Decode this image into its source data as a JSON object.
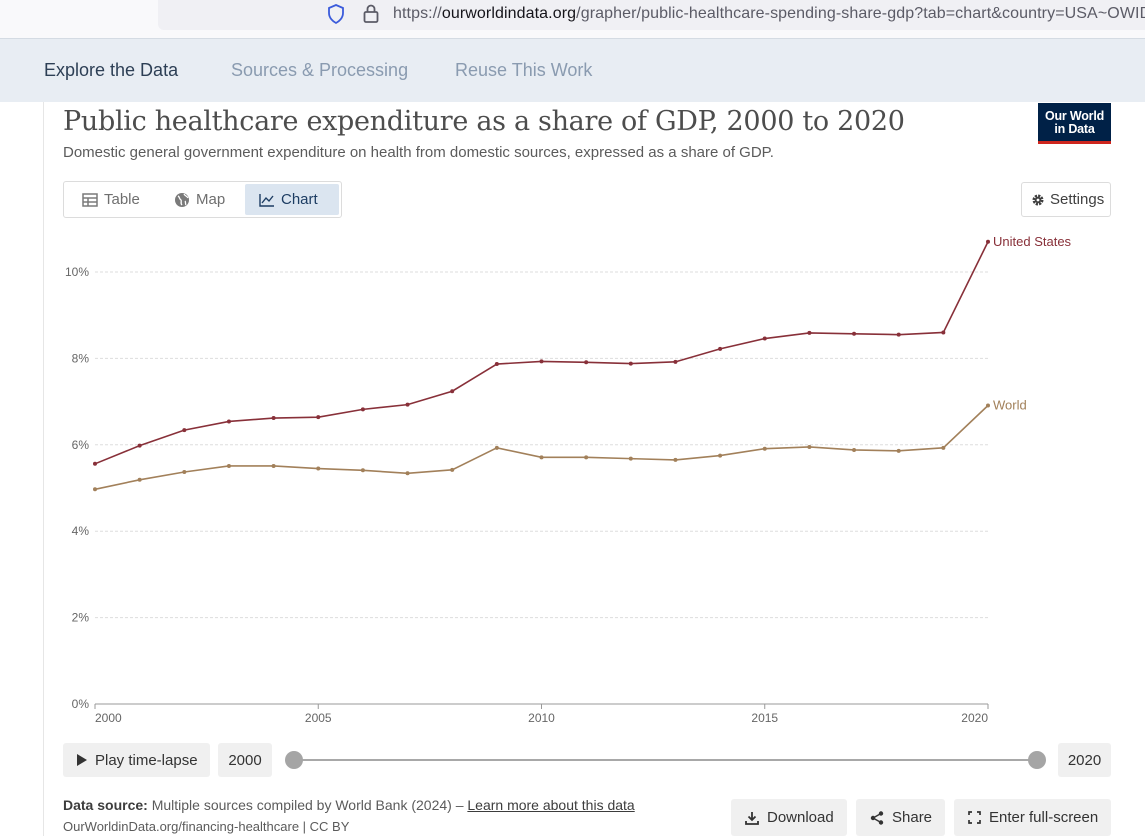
{
  "browser": {
    "url_prefix": "https://",
    "url_host": "ourworldindata.org",
    "url_rest": "/grapher/public-healthcare-spending-share-gdp?tab=chart&country=USA~OWID_WRL"
  },
  "nav_tabs": [
    {
      "label": "Explore the Data",
      "active": true
    },
    {
      "label": "Sources & Processing",
      "active": false
    },
    {
      "label": "Reuse This Work",
      "active": false
    }
  ],
  "header": {
    "title": "Public healthcare expenditure as a share of GDP, 2000 to 2020",
    "subtitle": "Domestic general government expenditure on health from domestic sources, expressed as a share of GDP.",
    "logo_line1": "Our World",
    "logo_line2": "in Data"
  },
  "view_tabs": [
    {
      "label": "Table",
      "icon": "table-icon",
      "active": false
    },
    {
      "label": "Map",
      "icon": "globe-icon",
      "active": false
    },
    {
      "label": "Chart",
      "icon": "line-chart-icon",
      "active": true
    }
  ],
  "settings_label": "Settings",
  "chart_data": {
    "type": "line",
    "x": [
      2000,
      2001,
      2002,
      2003,
      2004,
      2005,
      2006,
      2007,
      2008,
      2009,
      2010,
      2011,
      2012,
      2013,
      2014,
      2015,
      2016,
      2017,
      2018,
      2019,
      2020
    ],
    "series": [
      {
        "name": "United States",
        "color": "#883039",
        "values": [
          5.56,
          5.98,
          6.34,
          6.54,
          6.62,
          6.64,
          6.82,
          6.93,
          7.24,
          7.87,
          7.93,
          7.91,
          7.88,
          7.92,
          8.22,
          8.46,
          8.59,
          8.57,
          8.55,
          8.6,
          10.7
        ]
      },
      {
        "name": "World",
        "color": "#a2805a",
        "values": [
          4.97,
          5.19,
          5.37,
          5.51,
          5.51,
          5.45,
          5.41,
          5.34,
          5.42,
          5.93,
          5.71,
          5.71,
          5.68,
          5.65,
          5.75,
          5.91,
          5.95,
          5.88,
          5.86,
          5.93,
          6.91
        ]
      }
    ],
    "yticks": [
      "0%",
      "2%",
      "4%",
      "6%",
      "8%",
      "10%"
    ],
    "ytick_values": [
      0,
      2,
      4,
      6,
      8,
      10
    ],
    "xticks": [
      "2000",
      "2005",
      "2010",
      "2015",
      "2020"
    ],
    "xtick_values": [
      2000,
      2005,
      2010,
      2015,
      2020
    ],
    "ylim": [
      0,
      10.7
    ],
    "xlim": [
      2000,
      2020
    ],
    "grid": true,
    "legend": "line-end labels"
  },
  "timeline": {
    "play_label": "Play time-lapse",
    "start_year": "2000",
    "end_year": "2020"
  },
  "footer": {
    "source_label": "Data source:",
    "source_text": "Multiple sources compiled by World Bank (2024) – ",
    "learn_more": "Learn more about this data",
    "attribution": "OurWorldinData.org/financing-healthcare | CC BY",
    "download_label": "Download",
    "share_label": "Share",
    "fullscreen_label": "Enter full-screen"
  }
}
